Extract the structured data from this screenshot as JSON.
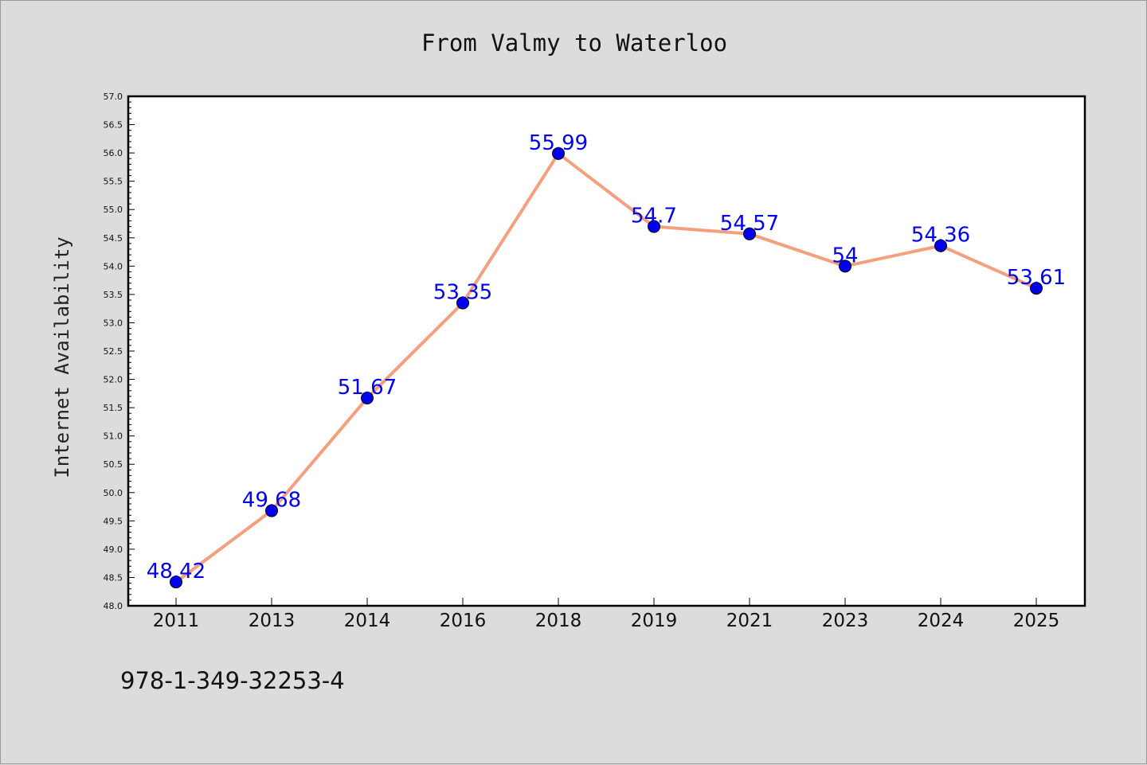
{
  "chart_data": {
    "type": "line",
    "title": "From Valmy to Waterloo",
    "xlabel": "",
    "ylabel": "Internet Availability",
    "categories": [
      "2011",
      "2013",
      "2014",
      "2016",
      "2018",
      "2019",
      "2021",
      "2023",
      "2024",
      "2025"
    ],
    "series": [
      {
        "values": [
          48.42,
          49.68,
          51.67,
          53.35,
          55.99,
          54.7,
          54.57,
          54,
          54.36,
          53.61
        ],
        "labels": [
          "48.42",
          "49.68",
          "51.67",
          "53.35",
          "55.99",
          "54.7",
          "54.57",
          "54",
          "54.36",
          "53.61"
        ],
        "line_color": "#f4a07e",
        "marker_color": "#0000ee"
      }
    ],
    "ylim": [
      48.0,
      57.0
    ],
    "ytick_labels": [
      "48.0",
      "48.5",
      "49.0",
      "49.5",
      "50.0",
      "50.5",
      "51.0",
      "51.5",
      "52.0",
      "52.5",
      "53.0",
      "53.5",
      "54.0",
      "54.5",
      "55.0",
      "55.5",
      "56.0",
      "56.5",
      "57.0"
    ],
    "grid": false,
    "legend": "none"
  },
  "footer": {
    "code": "978-1-349-32253-4"
  }
}
